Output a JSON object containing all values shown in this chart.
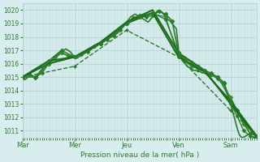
{
  "title": "",
  "xlabel": "Pression niveau de la mer( hPa )",
  "ylim": [
    1010.5,
    1020.5
  ],
  "yticks": [
    1011,
    1012,
    1013,
    1014,
    1015,
    1016,
    1017,
    1018,
    1019,
    1020
  ],
  "xtick_labels": [
    "Mar",
    "Mer",
    "Jeu",
    "Ven",
    "Sam"
  ],
  "xtick_positions": [
    0,
    24,
    48,
    72,
    96
  ],
  "xlim": [
    0,
    108
  ],
  "bg_color": "#d8eeee",
  "grid_color": "#b0cece",
  "line_color_dark": "#1a6b1a",
  "line_color_mid": "#2d8b2d",
  "line_color_light": "#3aaa3a",
  "hours": 108,
  "series": [
    {
      "x": [
        0,
        1,
        2,
        3,
        4,
        5,
        6,
        7,
        8,
        9,
        10,
        11,
        12,
        13,
        14,
        15,
        16,
        17,
        18,
        19,
        20,
        21,
        22,
        23,
        24,
        25,
        26,
        27,
        28,
        29,
        30,
        31,
        32,
        33,
        34,
        35,
        36,
        37,
        38,
        39,
        40,
        41,
        42,
        43,
        44,
        45,
        46,
        47,
        48,
        49,
        50,
        51,
        52,
        53,
        54,
        55,
        56,
        57,
        58,
        59,
        60,
        61,
        62,
        63,
        64,
        65,
        66,
        67,
        68,
        69,
        70,
        71,
        72,
        73,
        74,
        75,
        76,
        77,
        78,
        79,
        80,
        81,
        82,
        83,
        84,
        85,
        86,
        87,
        88,
        89,
        90,
        91,
        92,
        93,
        94,
        95,
        96,
        97,
        98,
        99,
        100,
        101,
        102,
        103,
        104,
        105,
        106,
        107
      ],
      "y": [
        1015,
        1014.8,
        1014.9,
        1015.1,
        1015.2,
        1015.0,
        1014.8,
        1015.1,
        1015.3,
        1015.5,
        1015.6,
        1015.8,
        1016.0,
        1016.2,
        1016.3,
        1016.5,
        1016.6,
        1016.8,
        1016.9,
        1017.0,
        1017.1,
        1017.0,
        1016.9,
        1016.7,
        1016.5,
        1016.4,
        1016.5,
        1016.6,
        1016.7,
        1016.8,
        1016.9,
        1017.0,
        1017.1,
        1017.2,
        1017.3,
        1017.4,
        1017.5,
        1017.6,
        1017.7,
        1017.8,
        1017.9,
        1018.0,
        1018.1,
        1018.2,
        1018.3,
        1018.5,
        1018.7,
        1018.9,
        1019.1,
        1019.3,
        1019.5,
        1019.6,
        1019.7,
        1019.6,
        1019.5,
        1019.4,
        1019.3,
        1019.2,
        1019.1,
        1019.3,
        1019.5,
        1019.7,
        1019.9,
        1020.0,
        1019.9,
        1019.7,
        1019.5,
        1019.3,
        1019.2,
        1019.0,
        1018.8,
        1018.6,
        1017.0,
        1016.5,
        1016.2,
        1016.0,
        1015.8,
        1015.7,
        1015.6,
        1015.5,
        1015.5,
        1015.4,
        1015.4,
        1015.3,
        1015.3,
        1015.2,
        1015.2,
        1015.1,
        1015.1,
        1015.0,
        1014.9,
        1014.7,
        1014.5,
        1014.2,
        1013.9,
        1013.5,
        1013.0,
        1012.4,
        1011.8,
        1011.2,
        1010.7,
        1010.5,
        1010.5,
        1010.6,
        1010.7,
        1010.8,
        1010.9,
        1010.8
      ],
      "style": "-",
      "color": "#2d7a2d",
      "lw": 1.2,
      "marker": null
    },
    {
      "x": [
        0,
        3,
        6,
        9,
        12,
        15,
        18,
        21,
        24,
        27,
        30,
        33,
        36,
        39,
        42,
        45,
        48,
        51,
        54,
        57,
        60,
        63,
        66,
        69,
        72,
        75,
        78,
        81,
        84,
        87,
        90,
        93,
        96,
        99,
        102,
        105,
        108
      ],
      "y": [
        1015.0,
        1015.2,
        1015.0,
        1015.3,
        1016.0,
        1016.5,
        1016.8,
        1016.6,
        1016.5,
        1016.7,
        1017.0,
        1017.3,
        1017.5,
        1017.8,
        1018.1,
        1018.5,
        1019.0,
        1019.4,
        1019.6,
        1019.5,
        1019.6,
        1019.9,
        1019.7,
        1019.2,
        1016.8,
        1016.2,
        1015.9,
        1015.6,
        1015.4,
        1015.2,
        1014.9,
        1014.5,
        1013.2,
        1012.5,
        1011.5,
        1010.8,
        1010.6
      ],
      "style": "-",
      "color": "#2d7a2d",
      "lw": 1.2,
      "marker": "D",
      "markersize": 2.5
    },
    {
      "x": [
        0,
        6,
        12,
        18,
        24,
        30,
        36,
        42,
        48,
        54,
        60,
        66,
        72,
        78,
        84,
        90,
        96,
        102,
        108
      ],
      "y": [
        1015.0,
        1015.0,
        1016.0,
        1016.8,
        1016.5,
        1017.0,
        1017.5,
        1018.2,
        1019.0,
        1019.6,
        1019.7,
        1019.5,
        1016.5,
        1015.8,
        1015.4,
        1015.0,
        1013.5,
        1011.5,
        1010.6
      ],
      "style": "-",
      "color": "#3a8a3a",
      "lw": 1.0,
      "marker": "D",
      "markersize": 2.5
    },
    {
      "x": [
        0,
        12,
        24,
        36,
        48,
        60,
        72,
        84,
        96,
        108
      ],
      "y": [
        1015.0,
        1016.0,
        1016.5,
        1017.5,
        1019.0,
        1019.8,
        1016.5,
        1015.4,
        1013.2,
        1010.6
      ],
      "style": "-",
      "color": "#1a6b1a",
      "lw": 1.5,
      "marker": null
    },
    {
      "x": [
        0,
        12,
        24,
        36,
        48,
        60,
        72,
        84,
        96,
        108
      ],
      "y": [
        1015.0,
        1016.2,
        1016.5,
        1017.6,
        1019.1,
        1020.0,
        1016.8,
        1015.5,
        1013.0,
        1010.5
      ],
      "style": "-",
      "color": "#1a6b1a",
      "lw": 1.5,
      "marker": null
    },
    {
      "x": [
        0,
        24,
        48,
        72,
        96,
        108
      ],
      "y": [
        1015.0,
        1015.8,
        1018.5,
        1016.5,
        1012.5,
        1010.6
      ],
      "style": "--",
      "color": "#2d7a2d",
      "lw": 1.0,
      "marker": "D",
      "markersize": 2.0
    },
    {
      "x": [
        0,
        6,
        12,
        18,
        24,
        30,
        36,
        42,
        48,
        54,
        60,
        66,
        72,
        75,
        78,
        81,
        84,
        87,
        90,
        93,
        96,
        99,
        102,
        105,
        107
      ],
      "y": [
        1015.0,
        1015.0,
        1016.2,
        1017.0,
        1016.5,
        1016.9,
        1017.5,
        1018.2,
        1019.0,
        1019.5,
        1019.8,
        1019.3,
        1016.8,
        1016.4,
        1016.1,
        1015.8,
        1015.5,
        1015.3,
        1015.0,
        1014.6,
        1013.0,
        1012.1,
        1011.0,
        1010.6,
        1010.5
      ],
      "style": "-",
      "color": "#2d7a2d",
      "lw": 1.0,
      "marker": "D",
      "markersize": 2.5
    }
  ]
}
